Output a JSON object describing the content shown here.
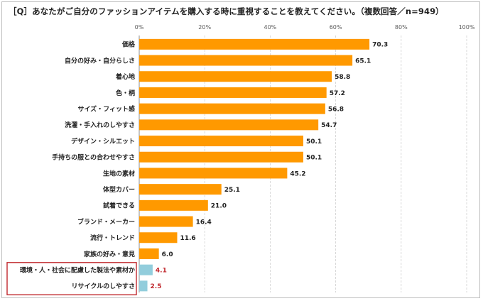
{
  "title": "［Q］あなたがご自分のファッションアイテムを購入する時に重視することを教えてください。（複数回答／n=949）",
  "colors": {
    "primary_bar": "#ff9900",
    "highlight_bar": "#92cddc",
    "highlight_value": "#c0282d",
    "highlight_box": "#c0282d"
  },
  "chart_data": {
    "type": "bar",
    "orientation": "horizontal",
    "title": "［Q］あなたがご自分のファッションアイテムを購入する時に重視することを教えてください。（複数回答／n=949）",
    "xlim": [
      0,
      100
    ],
    "x_ticks": [
      "0%",
      "20%",
      "40%",
      "60%",
      "80%",
      "100%"
    ],
    "grid": true,
    "categories": [
      "価格",
      "自分の好み・自分らしさ",
      "着心地",
      "色・柄",
      "サイズ・フィット感",
      "洗濯・手入れのしやすさ",
      "デザイン・シルエット",
      "手持ちの服との合わせやすさ",
      "生地の素材",
      "体型カバー",
      "試着できる",
      "ブランド・メーカー",
      "流行・トレンド",
      "家族の好み・意見",
      "環境・人・社会に配慮した製法や素材か",
      "リサイクルのしやすさ"
    ],
    "values": [
      70.3,
      65.1,
      58.8,
      57.2,
      56.8,
      54.7,
      50.1,
      50.1,
      45.2,
      25.1,
      21.0,
      16.4,
      11.6,
      6.0,
      4.1,
      2.5
    ],
    "value_labels": [
      "70.3",
      "65.1",
      "58.8",
      "57.2",
      "56.8",
      "54.7",
      "50.1",
      "50.1",
      "45.2",
      "25.1",
      "21.0",
      "16.4",
      "11.6",
      "6.0",
      "4.1",
      "2.5"
    ],
    "highlighted_categories": [
      "環境・人・社会に配慮した製法や素材か",
      "リサイクルのしやすさ"
    ]
  }
}
